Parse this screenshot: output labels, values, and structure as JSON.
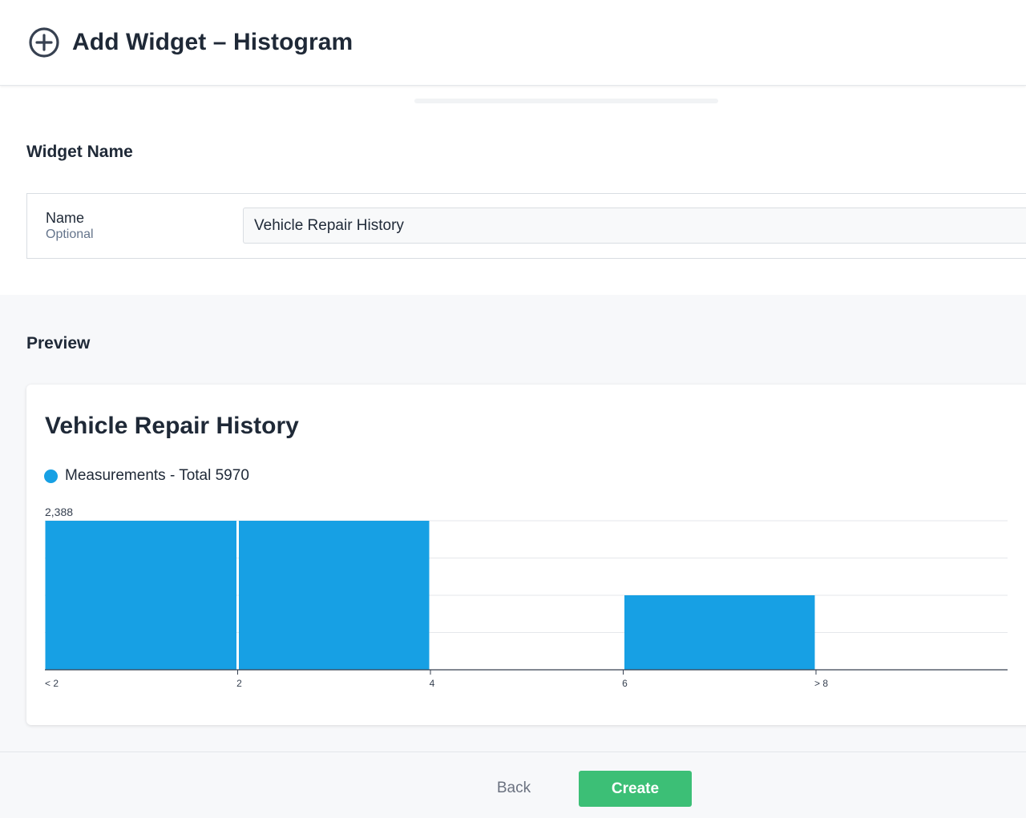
{
  "header": {
    "title": "Add Widget – Histogram",
    "icon": "plus-circle-icon"
  },
  "widget_name": {
    "section_title": "Widget Name",
    "label": "Name",
    "sublabel": "Optional",
    "value": "Vehicle Repair History"
  },
  "preview": {
    "section_title": "Preview",
    "card_title": "Vehicle Repair History",
    "legend_label": "Measurements - Total 5970",
    "legend_color": "#17a0e4"
  },
  "chart_data": {
    "type": "bar",
    "title": "Vehicle Repair History",
    "categories": [
      "< 2",
      "2",
      "4",
      "6",
      "> 8"
    ],
    "series": [
      {
        "name": "Measurements - Total 5970",
        "values": [
          2388,
          2388,
          0,
          1194,
          0
        ],
        "color": "#17a0e4"
      }
    ],
    "y_max_label": "2,388",
    "ylim": [
      0,
      2388
    ],
    "grid": true
  },
  "footer": {
    "back_label": "Back",
    "create_label": "Create",
    "create_color": "#3cbf76"
  }
}
